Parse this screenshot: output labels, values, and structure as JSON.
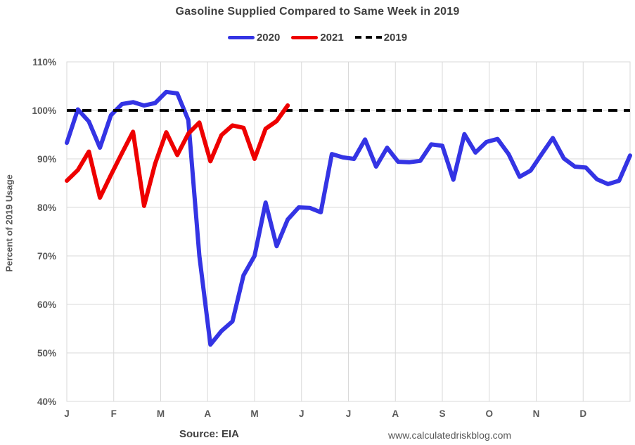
{
  "title": "Gasoline Supplied Compared to Same Week in 2019",
  "y_axis_title": "Percent of 2019 Usage",
  "footer": {
    "source": "Source: EIA",
    "website": "www.calculatedriskblog.com"
  },
  "legend": {
    "items": [
      {
        "label": "2020",
        "color": "#3434e4",
        "style": "solid"
      },
      {
        "label": "2021",
        "color": "#ee0000",
        "style": "solid"
      },
      {
        "label": "2019",
        "color": "#000000",
        "style": "dashed"
      }
    ]
  },
  "colors": {
    "grid": "#d9d9d9",
    "plot_border": "#d9d9d9",
    "tick_label": "#595959",
    "title_text": "#404040",
    "series_2020": "#3434e4",
    "series_2021": "#ee0000",
    "reference_2019": "#000000"
  },
  "chart_data": {
    "type": "line",
    "title": "Gasoline Supplied Compared to Same Week in 2019",
    "xlabel": "",
    "ylabel": "Percent of 2019 Usage",
    "ylim": [
      40,
      110
    ],
    "y_ticks": [
      40,
      50,
      60,
      70,
      80,
      90,
      100,
      110
    ],
    "y_tick_suffix": "%",
    "x_tick_labels": [
      "J",
      "F",
      "M",
      "A",
      "M",
      "J",
      "J",
      "A",
      "S",
      "O",
      "N",
      "D"
    ],
    "weeks_per_year": 52,
    "grid": true,
    "legend_position": "top",
    "reference_line": {
      "name": "2019",
      "value": 100,
      "style": "dashed"
    },
    "series": [
      {
        "name": "2020",
        "color": "#3434e4",
        "values": [
          93.3,
          100.2,
          97.7,
          92.3,
          99.0,
          101.3,
          101.7,
          101.0,
          101.5,
          103.8,
          103.5,
          98.0,
          70.0,
          51.7,
          54.5,
          56.5,
          66.0,
          70.0,
          81.0,
          72.0,
          77.5,
          80.0,
          79.9,
          79.0,
          91.0,
          90.3,
          90.0,
          94.0,
          88.4,
          92.3,
          89.4,
          89.3,
          89.6,
          93.0,
          92.7,
          85.7,
          95.1,
          91.3,
          93.5,
          94.1,
          91.0,
          86.3,
          87.6,
          91.0,
          94.3,
          90.1,
          88.4,
          88.2,
          85.8,
          84.8,
          85.5,
          90.7
        ]
      },
      {
        "name": "2021",
        "color": "#ee0000",
        "values": [
          85.5,
          87.7,
          91.5,
          82.0,
          86.7,
          91.2,
          95.6,
          80.3,
          89.0,
          95.5,
          90.8,
          95.2,
          97.5,
          89.5,
          94.9,
          96.9,
          96.4,
          90.0,
          96.2,
          97.8,
          101.0
        ]
      }
    ]
  }
}
